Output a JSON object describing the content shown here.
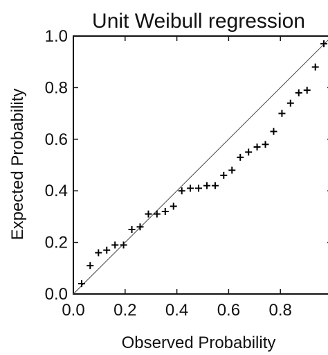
{
  "chart_data": {
    "type": "scatter",
    "title": "Unit Weibull regression",
    "xlabel": "Observed Probability",
    "ylabel": "Expected Probability",
    "xlim": [
      0.0,
      1.0
    ],
    "ylim": [
      0.0,
      1.0
    ],
    "xticks": [
      "0.0",
      "0.2",
      "0.4",
      "0.6",
      "0.8"
    ],
    "yticks": [
      "0.0",
      "0.2",
      "0.4",
      "0.6",
      "0.8",
      "1.0"
    ],
    "grid": false,
    "legend": "none",
    "marker": "plus",
    "reference_line": {
      "from": [
        0.0,
        0.0
      ],
      "to": [
        1.0,
        1.0
      ]
    },
    "series": [
      {
        "x": [
          0.032,
          0.065,
          0.097,
          0.129,
          0.161,
          0.194,
          0.226,
          0.258,
          0.29,
          0.323,
          0.355,
          0.387,
          0.419,
          0.452,
          0.484,
          0.516,
          0.548,
          0.581,
          0.613,
          0.645,
          0.677,
          0.71,
          0.742,
          0.774,
          0.806,
          0.839,
          0.871,
          0.903,
          0.935,
          0.968
        ],
        "y": [
          0.04,
          0.11,
          0.16,
          0.17,
          0.19,
          0.19,
          0.25,
          0.26,
          0.31,
          0.31,
          0.32,
          0.34,
          0.4,
          0.41,
          0.41,
          0.42,
          0.42,
          0.46,
          0.48,
          0.53,
          0.55,
          0.57,
          0.58,
          0.63,
          0.7,
          0.74,
          0.78,
          0.79,
          0.88,
          0.97
        ]
      }
    ]
  }
}
